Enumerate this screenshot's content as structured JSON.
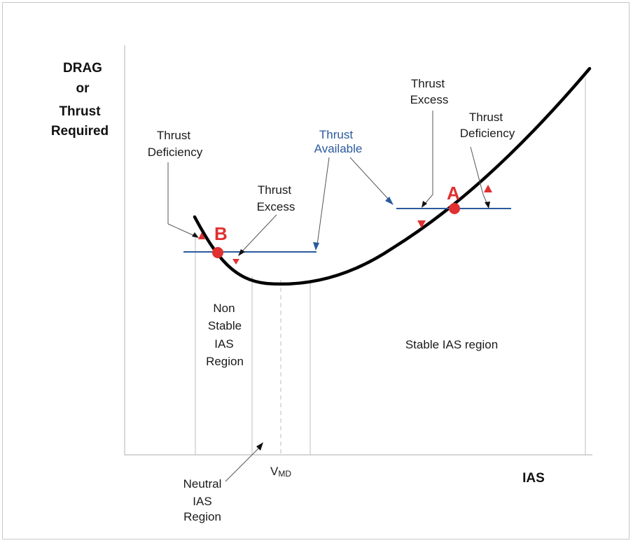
{
  "labels": {
    "y_axis_line1": "DRAG",
    "y_axis_line2": "or",
    "y_axis_line3": "Thrust",
    "y_axis_line4": "Required",
    "x_axis": "IAS",
    "vmd_main": "V",
    "vmd_sub": "MD",
    "point_a": "A",
    "point_b": "B",
    "thrust_deficiency_left_1": "Thrust",
    "thrust_deficiency_left_2": "Deficiency",
    "thrust_excess_left_1": "Thrust",
    "thrust_excess_left_2": "Excess",
    "thrust_available_1": "Thrust",
    "thrust_available_2": "Available",
    "thrust_excess_right_1": "Thrust",
    "thrust_excess_right_2": "Excess",
    "thrust_deficiency_right_1": "Thrust",
    "thrust_deficiency_right_2": "Deficiency",
    "non_stable_1": "Non",
    "non_stable_2": "Stable",
    "non_stable_3": "IAS",
    "non_stable_4": "Region",
    "stable_region": "Stable IAS region",
    "neutral_1": "Neutral",
    "neutral_2": "IAS",
    "neutral_3": "Region"
  },
  "colors": {
    "curve": "#000000",
    "thrust_line": "#2a5a9e",
    "point": "#e03030",
    "arrow": "#e03030"
  }
}
